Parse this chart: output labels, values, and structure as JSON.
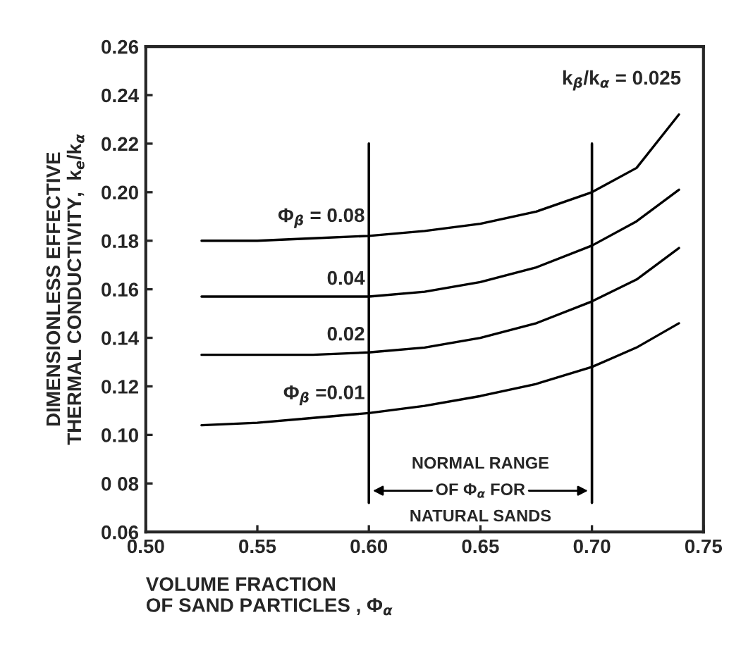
{
  "chart_data": {
    "type": "line",
    "xlabel": "VOLUME FRACTION\nOF SAND PARTICLES , Φ$_{α}$",
    "ylabel": "DIMENSIONLESS EFFECTIVE\nTHERMAL CONDUCTIVITY,  k$_{e}$/k$_{α}$",
    "x": [
      0.525,
      0.55,
      0.575,
      0.6,
      0.625,
      0.65,
      0.675,
      0.7,
      0.72,
      0.739
    ],
    "series": [
      {
        "name": "Φ$_{β}$ = 0.08",
        "color": "#000000",
        "values": [
          0.18,
          0.18,
          0.181,
          0.182,
          0.184,
          0.187,
          0.192,
          0.2,
          0.21,
          0.232
        ]
      },
      {
        "name": "0.04",
        "color": "#000000",
        "values": [
          0.157,
          0.157,
          0.157,
          0.157,
          0.159,
          0.163,
          0.169,
          0.178,
          0.188,
          0.201
        ]
      },
      {
        "name": "0.02",
        "color": "#000000",
        "values": [
          0.133,
          0.133,
          0.133,
          0.134,
          0.136,
          0.14,
          0.146,
          0.155,
          0.164,
          0.177
        ]
      },
      {
        "name": "Φ$_{β}$ =0.01",
        "color": "#000000",
        "values": [
          0.104,
          0.105,
          0.107,
          0.109,
          0.112,
          0.116,
          0.121,
          0.128,
          0.136,
          0.146
        ]
      }
    ],
    "xlim": [
      0.5,
      0.75
    ],
    "xticks": [
      {
        "value": 0.5,
        "label": "0.50"
      },
      0.55,
      {
        "value": 0.6,
        "label": "0.60"
      },
      0.65,
      {
        "value": 0.7,
        "label": "0.70"
      },
      0.75
    ],
    "ylim": [
      0.06,
      0.26
    ],
    "yticks": [
      0.06,
      {
        "value": 0.08,
        "label": "0 08"
      },
      {
        "value": 0.1,
        "label": "0.10"
      },
      0.12,
      0.14,
      0.16,
      0.18,
      {
        "value": 0.2,
        "label": "0.20"
      },
      0.22,
      0.24,
      0.26
    ],
    "ref_lines": [
      {
        "axis": "x",
        "value": 0.6,
        "label": null
      },
      {
        "axis": "x",
        "value": 0.7,
        "label": "NORMAL RANGE\nOF Φ$_{α}$ FOR\nNATURAL SANDS"
      }
    ],
    "annotations": [
      "k$_{β}$/k$_{α}$ = 0.025"
    ],
    "grid": false,
    "legend": false,
    "marker": "none",
    "line_style": "solid"
  }
}
